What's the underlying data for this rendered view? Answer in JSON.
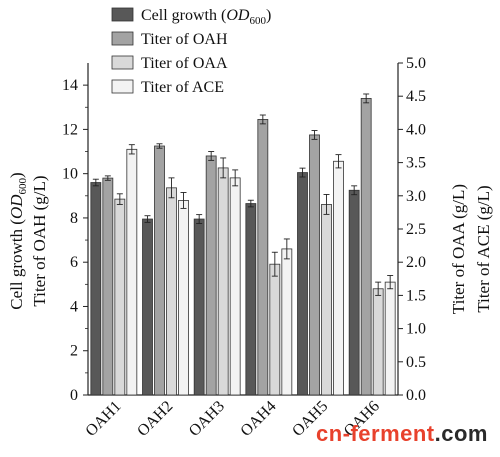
{
  "chart_data": {
    "type": "bar",
    "categories": [
      "OAH1",
      "OAH2",
      "OAH3",
      "OAH4",
      "OAH5",
      "OAH6"
    ],
    "left_axis": {
      "label_line1": "Cell growth (OD",
      "label_line1_sub": "600",
      "label_line1_end": ")",
      "label_line2": "Titer of OAH (g/L)",
      "ylim": [
        0,
        15
      ],
      "ticks": [
        0,
        2,
        4,
        6,
        8,
        10,
        12,
        14
      ]
    },
    "right_axis": {
      "label_line1": "Titer of OAA (g/L)",
      "label_line2": "Titer of ACE (g/L)",
      "ylim": [
        0,
        5
      ],
      "ticks": [
        "0.0",
        "0.5",
        "1.0",
        "1.5",
        "2.0",
        "2.5",
        "3.0",
        "3.5",
        "4.0",
        "4.5",
        "5.0"
      ]
    },
    "series": [
      {
        "name": "Cell growth (OD600)",
        "legend_main": "Cell growth (",
        "legend_italic": "OD",
        "legend_sub": "600",
        "legend_end": ")",
        "axis": "left",
        "color": "#585858",
        "values": [
          9.6,
          7.95,
          7.95,
          8.65,
          10.05,
          9.25
        ],
        "errors": [
          0.15,
          0.15,
          0.2,
          0.15,
          0.2,
          0.2
        ]
      },
      {
        "name": "Titer of OAH",
        "axis": "left",
        "color": "#a3a3a3",
        "values": [
          9.8,
          11.25,
          10.8,
          12.45,
          11.75,
          13.4
        ],
        "errors": [
          0.1,
          0.1,
          0.2,
          0.2,
          0.2,
          0.2
        ]
      },
      {
        "name": "Titer of OAA",
        "axis": "right",
        "color": "#d9d9d9",
        "values": [
          2.95,
          3.12,
          3.42,
          1.97,
          2.87,
          1.6
        ],
        "errors": [
          0.08,
          0.15,
          0.15,
          0.18,
          0.15,
          0.1
        ]
      },
      {
        "name": "Titer of ACE",
        "axis": "right",
        "color": "#f3f3f3",
        "values": [
          3.7,
          2.93,
          3.27,
          2.2,
          3.52,
          1.7
        ],
        "errors": [
          0.07,
          0.12,
          0.12,
          0.15,
          0.1,
          0.1
        ]
      }
    ],
    "legend_placement": "top-left",
    "grid": false
  },
  "watermark": {
    "part1": "cn-",
    "part2": "ferment",
    "part3": ".com"
  }
}
